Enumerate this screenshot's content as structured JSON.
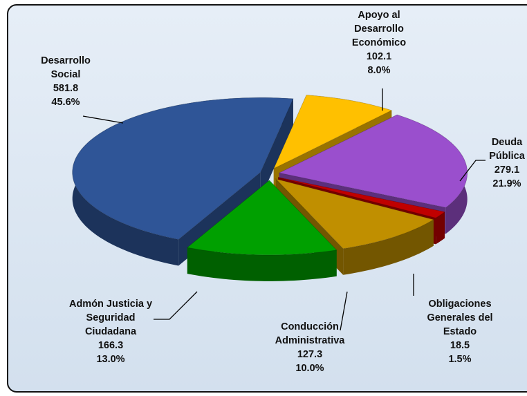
{
  "chart_data": {
    "type": "pie3d",
    "categories": [
      "Apoyo al\nDesarrollo\nEconómico",
      "Deuda\nPública",
      "Obligaciones\nGenerales del\nEstado",
      "Conducción\nAdministrativa",
      "Admón Justicia y\nSeguridad\nCiudadana",
      "Desarrollo\nSocial"
    ],
    "values": [
      102.1,
      279.1,
      18.5,
      127.3,
      166.3,
      581.8
    ],
    "percentages": [
      8.0,
      21.9,
      1.5,
      10.0,
      13.0,
      45.6
    ],
    "percentage_labels": [
      "8.0%",
      "21.9%",
      "1.5%",
      "10.0%",
      "13.0%",
      "45.6%"
    ],
    "colors": [
      "#ffc000",
      "#9a4fcd",
      "#c00000",
      "#c08f00",
      "#00a000",
      "#2f5597"
    ]
  }
}
